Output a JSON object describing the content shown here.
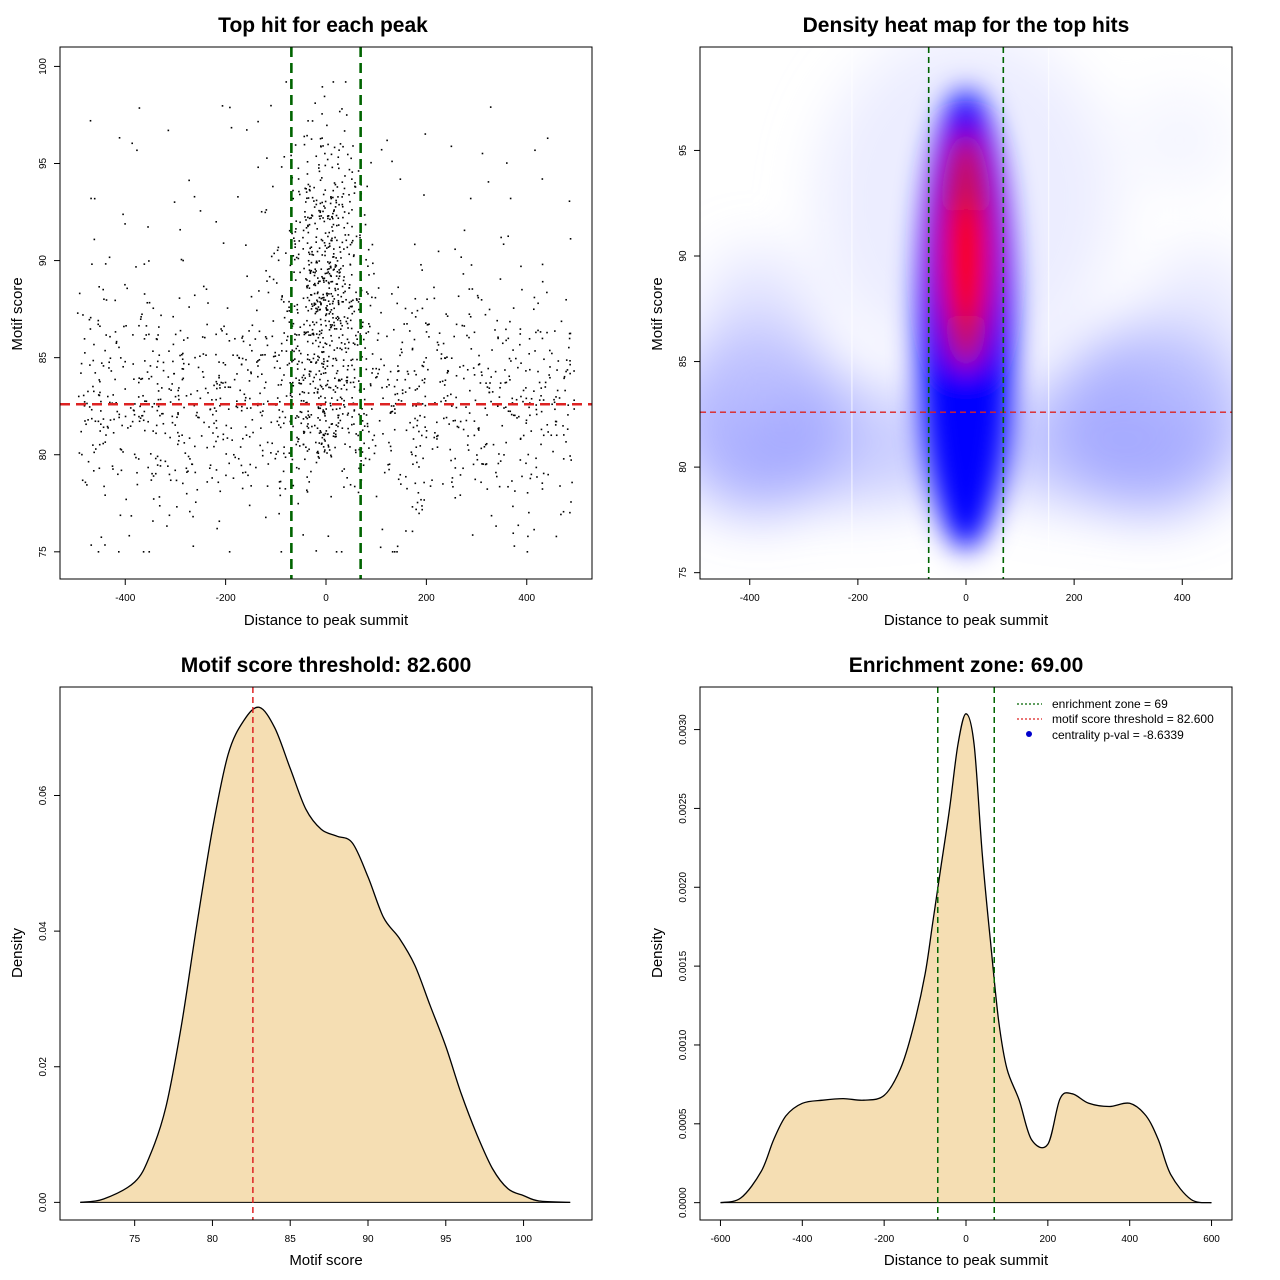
{
  "chart_data": [
    {
      "type": "scatter",
      "title": "Top hit for each peak",
      "xlabel": "Distance to peak summit",
      "ylabel": "Motif score",
      "xlim": [
        -530,
        530
      ],
      "ylim": [
        73.6,
        101.0
      ],
      "xticks": [
        -400,
        -200,
        0,
        200,
        400
      ],
      "yticks": [
        75,
        80,
        85,
        90,
        95,
        100
      ],
      "hlines": [
        {
          "y": 82.6,
          "color": "#dd2222",
          "dash": "dashed"
        }
      ],
      "vlines": [
        {
          "x": -69,
          "color": "#006400",
          "dash": "dashed"
        },
        {
          "x": 69,
          "color": "#006400",
          "dash": "dashed"
        }
      ],
      "points_summary": "approximately 2000 points; dense cluster within +/-69 of summit at scores 84-98; sparser uniform scatter elsewhere at scores 76-93",
      "point_color": "#000000"
    },
    {
      "type": "heatmap",
      "title": "Density heat map for the top hits",
      "xlabel": "Distance to peak summit",
      "ylabel": "Motif score",
      "xlim": [
        -492,
        492
      ],
      "ylim": [
        74.7,
        99.9
      ],
      "xticks": [
        -400,
        -200,
        0,
        200,
        400
      ],
      "yticks": [
        75,
        80,
        85,
        90,
        95
      ],
      "colormap": [
        "#ffffff",
        "#0000ff",
        "#ff0000"
      ],
      "hlines": [
        {
          "y": 82.6,
          "color": "#dd2222",
          "dash": "dashed"
        }
      ],
      "vlines": [
        {
          "x": -69,
          "color": "#006400",
          "dash": "dashed"
        },
        {
          "x": 69,
          "color": "#006400",
          "dash": "dashed"
        }
      ],
      "peak": {
        "x": 0,
        "y": 90
      }
    },
    {
      "type": "area",
      "title": "Motif score threshold: 82.600",
      "xlabel": "Motif score",
      "ylabel": "Density",
      "xlim": [
        70.2,
        104.4
      ],
      "ylim": [
        -0.0026,
        0.076
      ],
      "xticks": [
        75,
        80,
        85,
        90,
        95,
        100
      ],
      "yticks": [
        "0.00",
        "0.02",
        "0.04",
        "0.06"
      ],
      "x": [
        71.5,
        73,
        75,
        76,
        77,
        78,
        79,
        80,
        81,
        82,
        83,
        84,
        85,
        86,
        87,
        88,
        89,
        90,
        91,
        92,
        93,
        94,
        95,
        96,
        97,
        98,
        99,
        100,
        101,
        103
      ],
      "y": [
        0.0,
        0.0005,
        0.003,
        0.007,
        0.014,
        0.026,
        0.041,
        0.055,
        0.066,
        0.071,
        0.073,
        0.07,
        0.064,
        0.058,
        0.055,
        0.054,
        0.053,
        0.048,
        0.042,
        0.039,
        0.035,
        0.029,
        0.023,
        0.016,
        0.01,
        0.005,
        0.002,
        0.001,
        0.0002,
        0.0
      ],
      "fill": "#f5deb3",
      "vlines": [
        {
          "x": 82.6,
          "color": "#dd2222",
          "dash": "dashed"
        }
      ]
    },
    {
      "type": "area",
      "title": "Enrichment zone: 69.00",
      "xlabel": "Distance to peak summit",
      "ylabel": "Density",
      "xlim": [
        -650,
        650
      ],
      "ylim": [
        -0.00011,
        0.00327
      ],
      "xticks": [
        -600,
        -400,
        -200,
        0,
        200,
        400,
        600
      ],
      "yticks": [
        "0.0000",
        "0.0005",
        "0.0010",
        "0.0015",
        "0.0020",
        "0.0025",
        "0.0030"
      ],
      "x": [
        -600,
        -550,
        -500,
        -470,
        -440,
        -400,
        -350,
        -300,
        -250,
        -200,
        -160,
        -130,
        -100,
        -80,
        -60,
        -40,
        -20,
        0,
        20,
        40,
        60,
        80,
        100,
        130,
        160,
        200,
        230,
        260,
        300,
        350,
        400,
        440,
        470,
        500,
        550,
        600
      ],
      "y": [
        0.0,
        3e-05,
        0.0002,
        0.0004,
        0.00055,
        0.00063,
        0.00065,
        0.00066,
        0.00065,
        0.00068,
        0.00085,
        0.0011,
        0.00145,
        0.0018,
        0.00215,
        0.0025,
        0.0029,
        0.0031,
        0.0029,
        0.0022,
        0.00165,
        0.00115,
        0.00085,
        0.00065,
        0.0004,
        0.00037,
        0.00066,
        0.00069,
        0.00063,
        0.00061,
        0.00063,
        0.00055,
        0.0004,
        0.00018,
        2e-05,
        0.0
      ],
      "fill": "#f5deb3",
      "vlines": [
        {
          "x": -69,
          "color": "#006400",
          "dash": "dashed"
        },
        {
          "x": 69,
          "color": "#006400",
          "dash": "dashed"
        }
      ],
      "legend": {
        "placement": "top-right",
        "entries": [
          {
            "label": "enrichment zone = 69",
            "color": "#006400",
            "style": "dotted-line"
          },
          {
            "label": "motif score threshold = 82.600",
            "color": "#dd2222",
            "style": "dotted-line"
          },
          {
            "label": "centrality p-val = -8.6339",
            "color": "#0000cc",
            "style": "point"
          }
        ]
      }
    }
  ]
}
